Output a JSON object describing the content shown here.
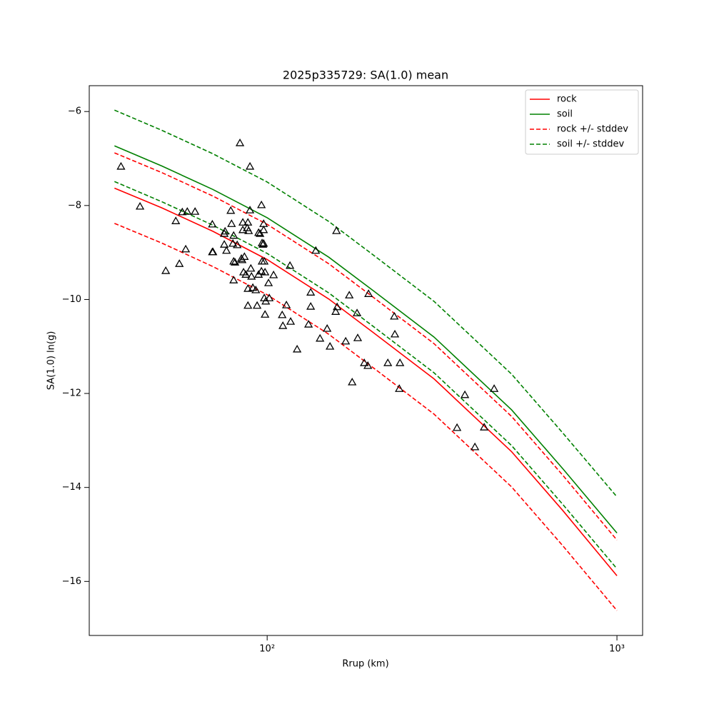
{
  "chart_data": {
    "type": "line",
    "title": "2025p335729: SA(1.0) mean",
    "xlabel": "Rrup (km)",
    "ylabel": "SA(1.0) ln(g)",
    "xscale": "log",
    "xlim": [
      31.0,
      1184
    ],
    "ylim": [
      -17.15,
      -5.45
    ],
    "xticks": [
      {
        "value": 100,
        "label": "10²"
      },
      {
        "value": 1000,
        "label": "10³"
      }
    ],
    "yticks": [
      {
        "value": -16,
        "label": "−16"
      },
      {
        "value": -14,
        "label": "−14"
      },
      {
        "value": -12,
        "label": "−12"
      },
      {
        "value": -10,
        "label": "−10"
      },
      {
        "value": -8,
        "label": "−8"
      },
      {
        "value": -6,
        "label": "−6"
      }
    ],
    "legend": "upper right",
    "x": [
      36.6,
      50,
      70,
      100,
      150,
      200,
      300,
      500,
      700,
      1000
    ],
    "series": [
      {
        "name": "rock",
        "color": "#ff0000",
        "dashed": false,
        "values": [
          -7.63,
          -8.05,
          -8.55,
          -9.15,
          -9.99,
          -10.69,
          -11.69,
          -13.24,
          -14.49,
          -15.88
        ]
      },
      {
        "name": "soil",
        "color": "#008000",
        "dashed": false,
        "values": [
          -6.73,
          -7.16,
          -7.66,
          -8.26,
          -9.1,
          -9.8,
          -10.8,
          -12.35,
          -13.6,
          -14.97
        ]
      },
      {
        "name": "rock +/- stddev",
        "color": "#ff0000",
        "dashed": true,
        "upper": [
          -6.88,
          -7.3,
          -7.8,
          -8.4,
          -9.24,
          -9.94,
          -10.94,
          -12.49,
          -13.74,
          -15.12
        ],
        "lower": [
          -8.38,
          -8.8,
          -9.3,
          -9.9,
          -10.74,
          -11.44,
          -12.44,
          -13.99,
          -15.24,
          -16.62
        ]
      },
      {
        "name": "soil +/- stddev",
        "color": "#008000",
        "dashed": true,
        "upper": [
          -5.97,
          -6.4,
          -6.9,
          -7.5,
          -8.34,
          -9.04,
          -10.04,
          -11.59,
          -12.84,
          -14.2
        ],
        "lower": [
          -7.49,
          -7.92,
          -8.42,
          -9.02,
          -9.86,
          -10.56,
          -11.56,
          -13.11,
          -14.36,
          -15.73
        ]
      }
    ],
    "points": {
      "marker": "triangle",
      "color": "#000000",
      "x": [
        38.2,
        43.3,
        51.3,
        54.8,
        56.1,
        57.2,
        58.5,
        59.1,
        62.2,
        69.7,
        69.7,
        70.0,
        75.4,
        75.4,
        75.8,
        76.5,
        78.7,
        79.1,
        79.8,
        80.2,
        80.2,
        80.2,
        80.9,
        82.1,
        83.6,
        84.4,
        84.8,
        85.2,
        85.2,
        85.6,
        86.1,
        86.9,
        87.7,
        88.1,
        88.1,
        88.1,
        88.5,
        89.3,
        89.3,
        89.8,
        90.2,
        91.0,
        92.8,
        93.6,
        94.5,
        94.5,
        95.4,
        96.3,
        96.3,
        96.7,
        96.7,
        97.2,
        97.7,
        97.7,
        97.7,
        98.1,
        98.1,
        98.6,
        98.6,
        99.1,
        100.9,
        101.4,
        104.3,
        110.4,
        110.9,
        113.5,
        116.2,
        116.7,
        121.8,
        131.3,
        133.2,
        133.2,
        137.7,
        141.6,
        148.4,
        151.2,
        157.0,
        157.8,
        158.5,
        167.7,
        171.7,
        175.0,
        180.7,
        181.5,
        189.5,
        194.0,
        194.9,
        221.3,
        230.9,
        231.8,
        238.6,
        239.7,
        349.0,
        367.5,
        392.6,
        417.3,
        445.6
      ],
      "y": [
        -7.17,
        -8.02,
        -9.39,
        -8.33,
        -9.24,
        -8.14,
        -8.93,
        -8.13,
        -8.13,
        -8.4,
        -8.99,
        -8.99,
        -8.83,
        -8.6,
        -8.55,
        -8.96,
        -8.11,
        -8.39,
        -8.81,
        -8.64,
        -9.19,
        -9.59,
        -9.21,
        -8.84,
        -6.67,
        -9.13,
        -9.16,
        -8.36,
        -8.52,
        -9.42,
        -9.09,
        -9.47,
        -8.48,
        -10.13,
        -8.36,
        -9.77,
        -8.54,
        -7.17,
        -8.1,
        -9.34,
        -9.51,
        -9.75,
        -9.8,
        -10.13,
        -8.58,
        -9.47,
        -8.6,
        -9.4,
        -7.99,
        -8.8,
        -9.19,
        -8.83,
        -8.39,
        -8.52,
        -8.81,
        -9.19,
        -9.97,
        -10.32,
        -9.42,
        -10.04,
        -9.65,
        -9.97,
        -9.48,
        -10.33,
        -10.56,
        -10.12,
        -9.28,
        -10.47,
        -11.06,
        -10.53,
        -9.85,
        -10.15,
        -8.96,
        -10.83,
        -10.62,
        -11.0,
        -10.26,
        -8.54,
        -10.16,
        -10.89,
        -9.91,
        -11.76,
        -10.29,
        -10.82,
        -11.35,
        -11.41,
        -9.88,
        -11.35,
        -10.36,
        -10.74,
        -11.9,
        -11.35,
        -12.73,
        -12.03,
        -13.14,
        -12.72,
        -11.9
      ]
    }
  }
}
